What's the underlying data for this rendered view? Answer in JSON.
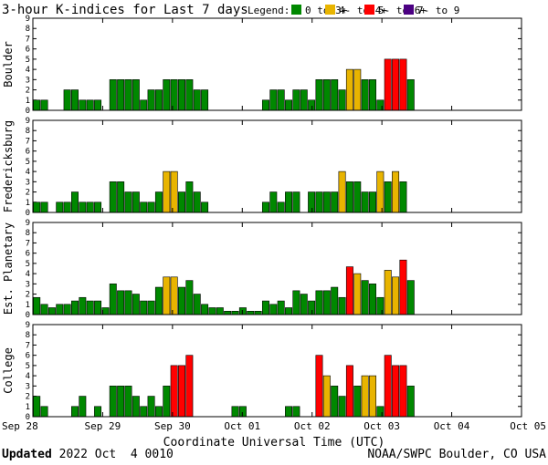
{
  "title": "3-hour K-indices for Last 7 days",
  "legend": {
    "label": "Legend:",
    "items": [
      {
        "label": "0 to 3+",
        "color": "#008800"
      },
      {
        "label": "4- to 4+",
        "color": "#e8b400"
      },
      {
        "label": "5- to 6+",
        "color": "#ff0000"
      },
      {
        "label": "7- to 9",
        "color": "#4b0082"
      }
    ]
  },
  "xlabel": "Coordinate Universal Time (UTC)",
  "x_tick_labels": [
    "Sep 28",
    "Sep 29",
    "Sep 30",
    "Oct 01",
    "Oct 02",
    "Oct 03",
    "Oct 04",
    "Oct 05"
  ],
  "y_ticks": [
    "0",
    "1",
    "2",
    "3",
    "4",
    "5",
    "6",
    "7",
    "8",
    "9"
  ],
  "footer": {
    "updated_label": "Updated",
    "updated_value": " 2022 Oct  4 0010",
    "credit": "NOAA/SWPC Boulder, CO USA"
  },
  "chart_data": [
    {
      "type": "bar",
      "panel": "Boulder",
      "ylabel": "Boulder",
      "ylim": [
        0,
        9
      ],
      "values": [
        1,
        1,
        0,
        0,
        2,
        2,
        1,
        1,
        1,
        0,
        3,
        3,
        3,
        3,
        1,
        2,
        2,
        3,
        3,
        3,
        3,
        2,
        2,
        0,
        0,
        0,
        0,
        0,
        0,
        0,
        1,
        2,
        2,
        1,
        2,
        2,
        1,
        3,
        3,
        3,
        2,
        4,
        4,
        3,
        3,
        1,
        5,
        5,
        5,
        3,
        0,
        0,
        0,
        0,
        0,
        0,
        0,
        0,
        0,
        0,
        0,
        0,
        0,
        0
      ]
    },
    {
      "type": "bar",
      "panel": "Fredericksburg",
      "ylabel": "Fredericksburg",
      "ylim": [
        0,
        9
      ],
      "values": [
        1,
        1,
        0,
        1,
        1,
        2,
        1,
        1,
        1,
        0,
        3,
        3,
        2,
        2,
        1,
        1,
        2,
        4,
        4,
        2,
        3,
        2,
        1,
        0,
        0,
        0,
        0,
        0,
        0,
        0,
        1,
        2,
        1,
        2,
        2,
        0,
        2,
        2,
        2,
        2,
        4,
        3,
        3,
        2,
        2,
        4,
        3,
        4,
        3,
        0,
        0,
        0,
        0,
        0,
        0,
        0,
        0,
        0,
        0,
        0,
        0,
        0,
        0,
        0
      ]
    },
    {
      "type": "bar",
      "panel": "Est. Planetary",
      "ylabel": "Est. Planetary",
      "ylim": [
        0,
        9
      ],
      "values": [
        1.67,
        1,
        0.67,
        1,
        1,
        1.33,
        1.67,
        1.33,
        1.33,
        0.67,
        3,
        2.33,
        2.33,
        2,
        1.33,
        1.33,
        2.67,
        3.67,
        3.67,
        2.67,
        3.33,
        2,
        1,
        0.67,
        0.67,
        0.33,
        0.33,
        0.67,
        0.33,
        0.33,
        1.33,
        1,
        1.33,
        0.67,
        2.33,
        2,
        1.33,
        2.33,
        2.33,
        2.67,
        1.67,
        4.67,
        4,
        3.33,
        3,
        1.67,
        4.33,
        3.67,
        5.33,
        3.33,
        0,
        0,
        0,
        0,
        0,
        0,
        0,
        0,
        0,
        0,
        0,
        0,
        0,
        0
      ]
    },
    {
      "type": "bar",
      "panel": "College",
      "ylabel": "College",
      "ylim": [
        0,
        9
      ],
      "values": [
        2,
        1,
        0,
        0,
        0,
        1,
        2,
        0,
        1,
        0,
        3,
        3,
        3,
        2,
        1,
        2,
        1,
        3,
        5,
        5,
        6,
        0,
        0,
        0,
        0,
        0,
        1,
        1,
        0,
        0,
        0,
        0,
        0,
        1,
        1,
        0,
        0,
        6,
        4,
        3,
        2,
        5,
        3,
        4,
        4,
        1,
        6,
        5,
        5,
        3,
        0,
        0,
        0,
        0,
        0,
        0,
        0,
        0,
        0,
        0,
        0,
        0,
        0,
        0
      ]
    }
  ]
}
